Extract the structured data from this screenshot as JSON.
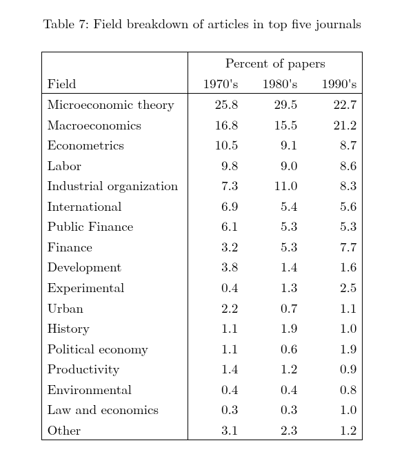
{
  "caption": "Table 7: Field breakdown of articles in top five journals",
  "table": {
    "type": "table",
    "header_group": "Percent of papers",
    "columns": [
      "Field",
      "1970's",
      "1980's",
      "1990's"
    ],
    "rows": [
      [
        "Microeconomic theory",
        "25.8",
        "29.5",
        "22.7"
      ],
      [
        "Macroeconomics",
        "16.8",
        "15.5",
        "21.2"
      ],
      [
        "Econometrics",
        "10.5",
        "9.1",
        "8.7"
      ],
      [
        "Labor",
        "9.8",
        "9.0",
        "8.6"
      ],
      [
        "Industrial organization",
        "7.3",
        "11.0",
        "8.3"
      ],
      [
        "International",
        "6.9",
        "5.4",
        "5.6"
      ],
      [
        "Public Finance",
        "6.1",
        "5.3",
        "5.3"
      ],
      [
        "Finance",
        "3.2",
        "5.3",
        "7.7"
      ],
      [
        "Development",
        "3.8",
        "1.4",
        "1.6"
      ],
      [
        "Experimental",
        "0.4",
        "1.3",
        "2.5"
      ],
      [
        "Urban",
        "2.2",
        "0.7",
        "1.1"
      ],
      [
        "History",
        "1.1",
        "1.9",
        "1.0"
      ],
      [
        "Political economy",
        "1.1",
        "0.6",
        "1.9"
      ],
      [
        "Productivity",
        "1.4",
        "1.2",
        "0.9"
      ],
      [
        "Environmental",
        "0.4",
        "0.4",
        "0.8"
      ],
      [
        "Law and economics",
        "0.3",
        "0.3",
        "1.0"
      ],
      [
        "Other",
        "3.1",
        "2.3",
        "1.2"
      ]
    ],
    "font_size_pt": 14,
    "text_color": "#000000",
    "background_color": "#ffffff",
    "border_color": "#000000",
    "col_align": [
      "left",
      "right",
      "right",
      "right"
    ]
  }
}
